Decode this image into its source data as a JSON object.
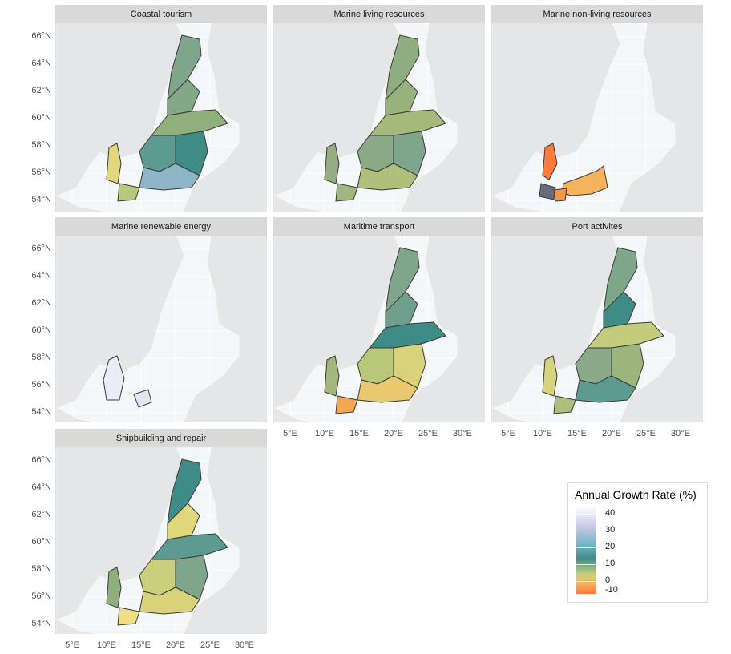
{
  "panels": [
    {
      "title": "Coastal tourism"
    },
    {
      "title": "Marine living resources"
    },
    {
      "title": "Marine non-living resources"
    },
    {
      "title": "Marine renewable energy"
    },
    {
      "title": "Maritime transport"
    },
    {
      "title": "Port activites"
    },
    {
      "title": "Shipbuilding and repair"
    }
  ],
  "y_ticks": [
    "66°N",
    "64°N",
    "62°N",
    "60°N",
    "58°N",
    "56°N",
    "54°N"
  ],
  "x_ticks": [
    "5°E",
    "10°E",
    "15°E",
    "20°E",
    "25°E",
    "30°E"
  ],
  "legend": {
    "title": "Annual Growth Rate (%)",
    "labels": [
      "40",
      "30",
      "20",
      "10",
      "0",
      "-10"
    ]
  },
  "colors": {
    "sea": "#f4f7fa",
    "land": "#e4e6e8",
    "panel_bg": "#ebebeb",
    "strip": "#d9d9d9",
    "outline": "#3a3a3a",
    "high": "#ffffff",
    "mid_high": "#c8c8e8",
    "mid": "#3f8c86",
    "low": "#c8d27a",
    "negative": "#ff7a3d"
  }
}
